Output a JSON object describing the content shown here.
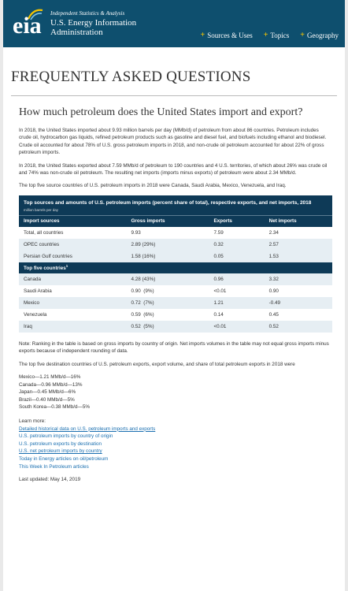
{
  "header": {
    "logo_text": "eia",
    "tagline": "Independent Statistics & Analysis",
    "agency_line1": "U.S. Energy Information",
    "agency_line2": "Administration",
    "nav": [
      {
        "label": "Sources & Uses",
        "icon": "plus-icon"
      },
      {
        "label": "Topics",
        "icon": "plus-icon"
      },
      {
        "label": "Geography",
        "icon": "plus-icon"
      }
    ],
    "colors": {
      "header_bg": "#0e4f6e",
      "accent": "#f5c400",
      "link": "#1a6fb0",
      "table_header": "#0e3a57",
      "row_alt": "#e6eef3"
    }
  },
  "faq_title": "FREQUENTLY ASKED QUESTIONS",
  "question": "How much petroleum does the United States import and export?",
  "paragraphs": [
    "In 2018, the United States imported about 9.93 million barrels per day (MMb/d) of petroleum from about 86 countries. Petroleum includes crude oil, hydrocarbon gas liquids, refined petroleum products such as gasoline and diesel fuel, and biofuels including ethanol and biodiesel. Crude oil accounted for about 78% of U.S. gross petroleum imports in 2018, and non-crude oil petroleum accounted for about 22% of gross petroleum imports.",
    "In 2018, the United States exported about 7.59 MMb/d of petroleum to 190 countries and 4 U.S. territories, of which about 26% was crude oil and 74% was non-crude oil petroleum. The resulting net imports (imports minus exports) of petroleum were about 2.34 MMb/d.",
    "The top five source countries of U.S. petroleum imports in 2018 were Canada, Saudi Arabia, Mexico, Venezuela, and Iraq."
  ],
  "table": {
    "title": "Top sources and amounts of U.S. petroleum imports (percent share of total), respective exports, and net imports, 2018",
    "units": "million barrels per day",
    "columns": [
      "Import sources",
      "Gross imports",
      "Exports",
      "Net imports"
    ],
    "rows": [
      {
        "source": "Total, all countries",
        "imports": "9.93",
        "exports": "7.59",
        "net": "2.34"
      },
      {
        "source": "OPEC countries",
        "imports": "2.89 (29%)",
        "exports": "0.32",
        "net": "2.57"
      },
      {
        "source": "Persian Gulf countries",
        "imports": "1.58 (16%)",
        "exports": "0.05",
        "net": "1.53"
      }
    ],
    "section_label": "Top five countries",
    "section_footnote": "1",
    "countries": [
      {
        "source": "Canada",
        "imports": "4.28 (43%)",
        "exports": "0.96",
        "net": "3.32"
      },
      {
        "source": "Saudi Arabia",
        "imports": "0.90  (9%)",
        "exports": "<0.01",
        "net": "0.90"
      },
      {
        "source": "Mexico",
        "imports": "0.72  (7%)",
        "exports": "1.21",
        "net": "-0.49"
      },
      {
        "source": "Venezuela",
        "imports": "0.59  (6%)",
        "exports": "0.14",
        "net": "0.45"
      },
      {
        "source": "Iraq",
        "imports": "0.52  (5%)",
        "exports": "<0.01",
        "net": "0.52"
      }
    ]
  },
  "note": "Note: Ranking in the table is based on gross imports by country of origin. Net imports volumes in the table may not equal gross imports minus exports because of independent rounding of data.",
  "dest_intro": "The top five destination countries of U.S. petroleum exports, export volume, and share of total petroleum exports in 2018 were",
  "destinations": [
    "Mexico—1.21 MMb/d—16%",
    "Canada—0.96 MMb/d—13%",
    "Japan—0.45 MMb/d—6%",
    "Brazil—0.40 MMb/d—5%",
    "South Korea—0.38 MMb/d—5%"
  ],
  "learn_more": {
    "label": "Learn more:",
    "links": [
      "Detailed historical data on U.S. petroleum imports and exports",
      "U.S. petroleum imports by country of origin",
      "U.S. petroleum exports by destination",
      "U.S. net petroleum imports by country",
      "Today in Energy articles on oil/petroleum",
      "This Week In Petroleum articles"
    ]
  },
  "last_updated": "Last updated: May 14, 2019"
}
